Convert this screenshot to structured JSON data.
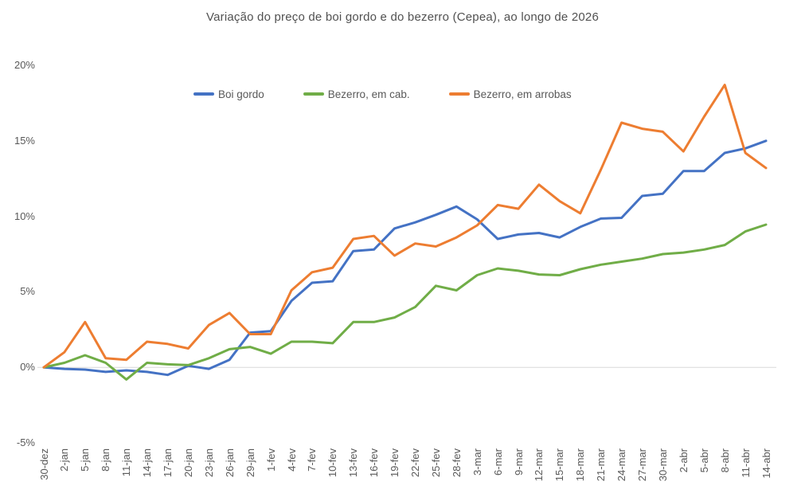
{
  "page": {
    "background": "#ffffff",
    "text_color": "#595959",
    "axis_line_color": "#d9d9d9"
  },
  "chart_data": {
    "type": "line",
    "title": "Variação do preço de boi gordo  e do bezerro (Cepea), ao longo de 2026",
    "legend_position": "top",
    "grid": false,
    "markers": false,
    "categories": [
      "30-dez",
      "2-jan",
      "5-jan",
      "8-jan",
      "11-jan",
      "14-jan",
      "17-jan",
      "20-jan",
      "23-jan",
      "26-jan",
      "29-jan",
      "1-fev",
      "4-fev",
      "7-fev",
      "10-fev",
      "13-fev",
      "16-fev",
      "19-fev",
      "22-fev",
      "25-fev",
      "28-fev",
      "3-mar",
      "6-mar",
      "9-mar",
      "12-mar",
      "15-mar",
      "18-mar",
      "21-mar",
      "24-mar",
      "27-mar",
      "30-mar",
      "2-abr",
      "5-abr",
      "8-abr",
      "11-abr",
      "14-abr"
    ],
    "series": [
      {
        "name": "Boi gordo",
        "color": "#4472C4",
        "values": [
          0,
          -0.1,
          -0.15,
          -0.3,
          -0.2,
          -0.3,
          -0.5,
          0.1,
          -0.1,
          0.5,
          2.3,
          2.4,
          4.4,
          5.6,
          5.7,
          7.7,
          7.8,
          9.2,
          9.6,
          10.1,
          10.65,
          9.8,
          8.5,
          8.8,
          8.9,
          8.6,
          9.3,
          9.85,
          9.9,
          11.35,
          11.5,
          13.0,
          13.0,
          14.2,
          14.5,
          15.0
        ]
      },
      {
        "name": "Bezerro, em cab.",
        "color": "#70AD47",
        "values": [
          0,
          0.3,
          0.8,
          0.3,
          -0.8,
          0.3,
          0.2,
          0.15,
          0.6,
          1.2,
          1.35,
          0.9,
          1.7,
          1.7,
          1.6,
          3.0,
          3.0,
          3.3,
          4.0,
          5.4,
          5.1,
          6.1,
          6.55,
          6.4,
          6.15,
          6.1,
          6.5,
          6.8,
          7.0,
          7.2,
          7.5,
          7.6,
          7.8,
          8.1,
          9.0,
          9.45
        ]
      },
      {
        "name": "Bezerro, em arrobas",
        "color": "#ED7D31",
        "values": [
          0,
          1.0,
          3.0,
          0.6,
          0.5,
          1.7,
          1.55,
          1.25,
          2.8,
          3.6,
          2.2,
          2.2,
          5.1,
          6.3,
          6.6,
          8.5,
          8.7,
          7.4,
          8.2,
          8.0,
          8.6,
          9.4,
          10.75,
          10.5,
          12.1,
          11.0,
          10.2,
          13.1,
          16.2,
          15.8,
          15.6,
          14.3,
          16.6,
          18.7,
          14.2,
          13.2
        ]
      }
    ],
    "yaxis": {
      "unit": "%",
      "min": -5,
      "max": 20,
      "tick_values": [
        20,
        15,
        10,
        5,
        0,
        -5
      ],
      "tick_labels": [
        "20%",
        "15%",
        "10%",
        "5%",
        "0%",
        "-5%"
      ]
    }
  }
}
